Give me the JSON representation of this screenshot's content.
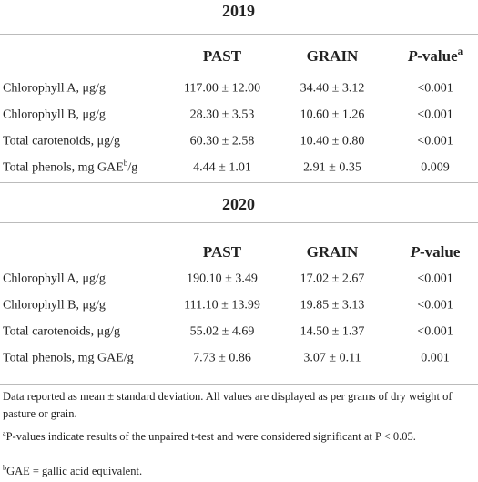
{
  "sections": [
    {
      "year": "2019",
      "header": [
        "PAST",
        "GRAIN",
        {
          "italic": "P",
          "text": "-value",
          "sup": "a"
        }
      ],
      "rows": [
        [
          "Chlorophyll A, μg/g",
          "117.00 ± 12.00",
          "34.40 ± 3.12",
          "<0.001"
        ],
        [
          "Chlorophyll B, μg/g",
          "28.30 ± 3.53",
          "10.60 ± 1.26",
          "<0.001"
        ],
        [
          "Total carotenoids, μg/g",
          "60.30 ± 2.58",
          "10.40 ± 0.80",
          "<0.001"
        ],
        [
          {
            "text": "Total phenols, mg GAE",
            "sup": "b",
            "tail": "/g"
          },
          "4.44 ± 1.01",
          "2.91 ± 0.35",
          "0.009"
        ]
      ]
    },
    {
      "year": "2020",
      "header": [
        "PAST",
        "GRAIN",
        {
          "italic": "P",
          "text": "-value"
        }
      ],
      "rows": [
        [
          "Chlorophyll A, μg/g",
          "190.10 ± 3.49",
          "17.02 ± 2.67",
          "<0.001"
        ],
        [
          "Chlorophyll B, μg/g",
          "111.10 ± 13.99",
          "19.85 ± 3.13",
          "<0.001"
        ],
        [
          "Total carotenoids, μg/g",
          "55.02 ± 4.69",
          "14.50 ± 1.37",
          "<0.001"
        ],
        [
          "Total phenols, mg GAE/g",
          "7.73 ± 0.86",
          "3.07 ± 0.11",
          "0.001"
        ]
      ]
    }
  ],
  "notes": [
    {
      "text": "Data reported as mean ± standard deviation. All values are displayed as per grams of dry weight of pasture or grain."
    },
    {
      "sup": "a",
      "text": "P-values indicate results of the unpaired t-test and were considered significant at P < 0.05."
    },
    {
      "sup": "b",
      "text": "GAE = gallic acid equivalent."
    }
  ]
}
